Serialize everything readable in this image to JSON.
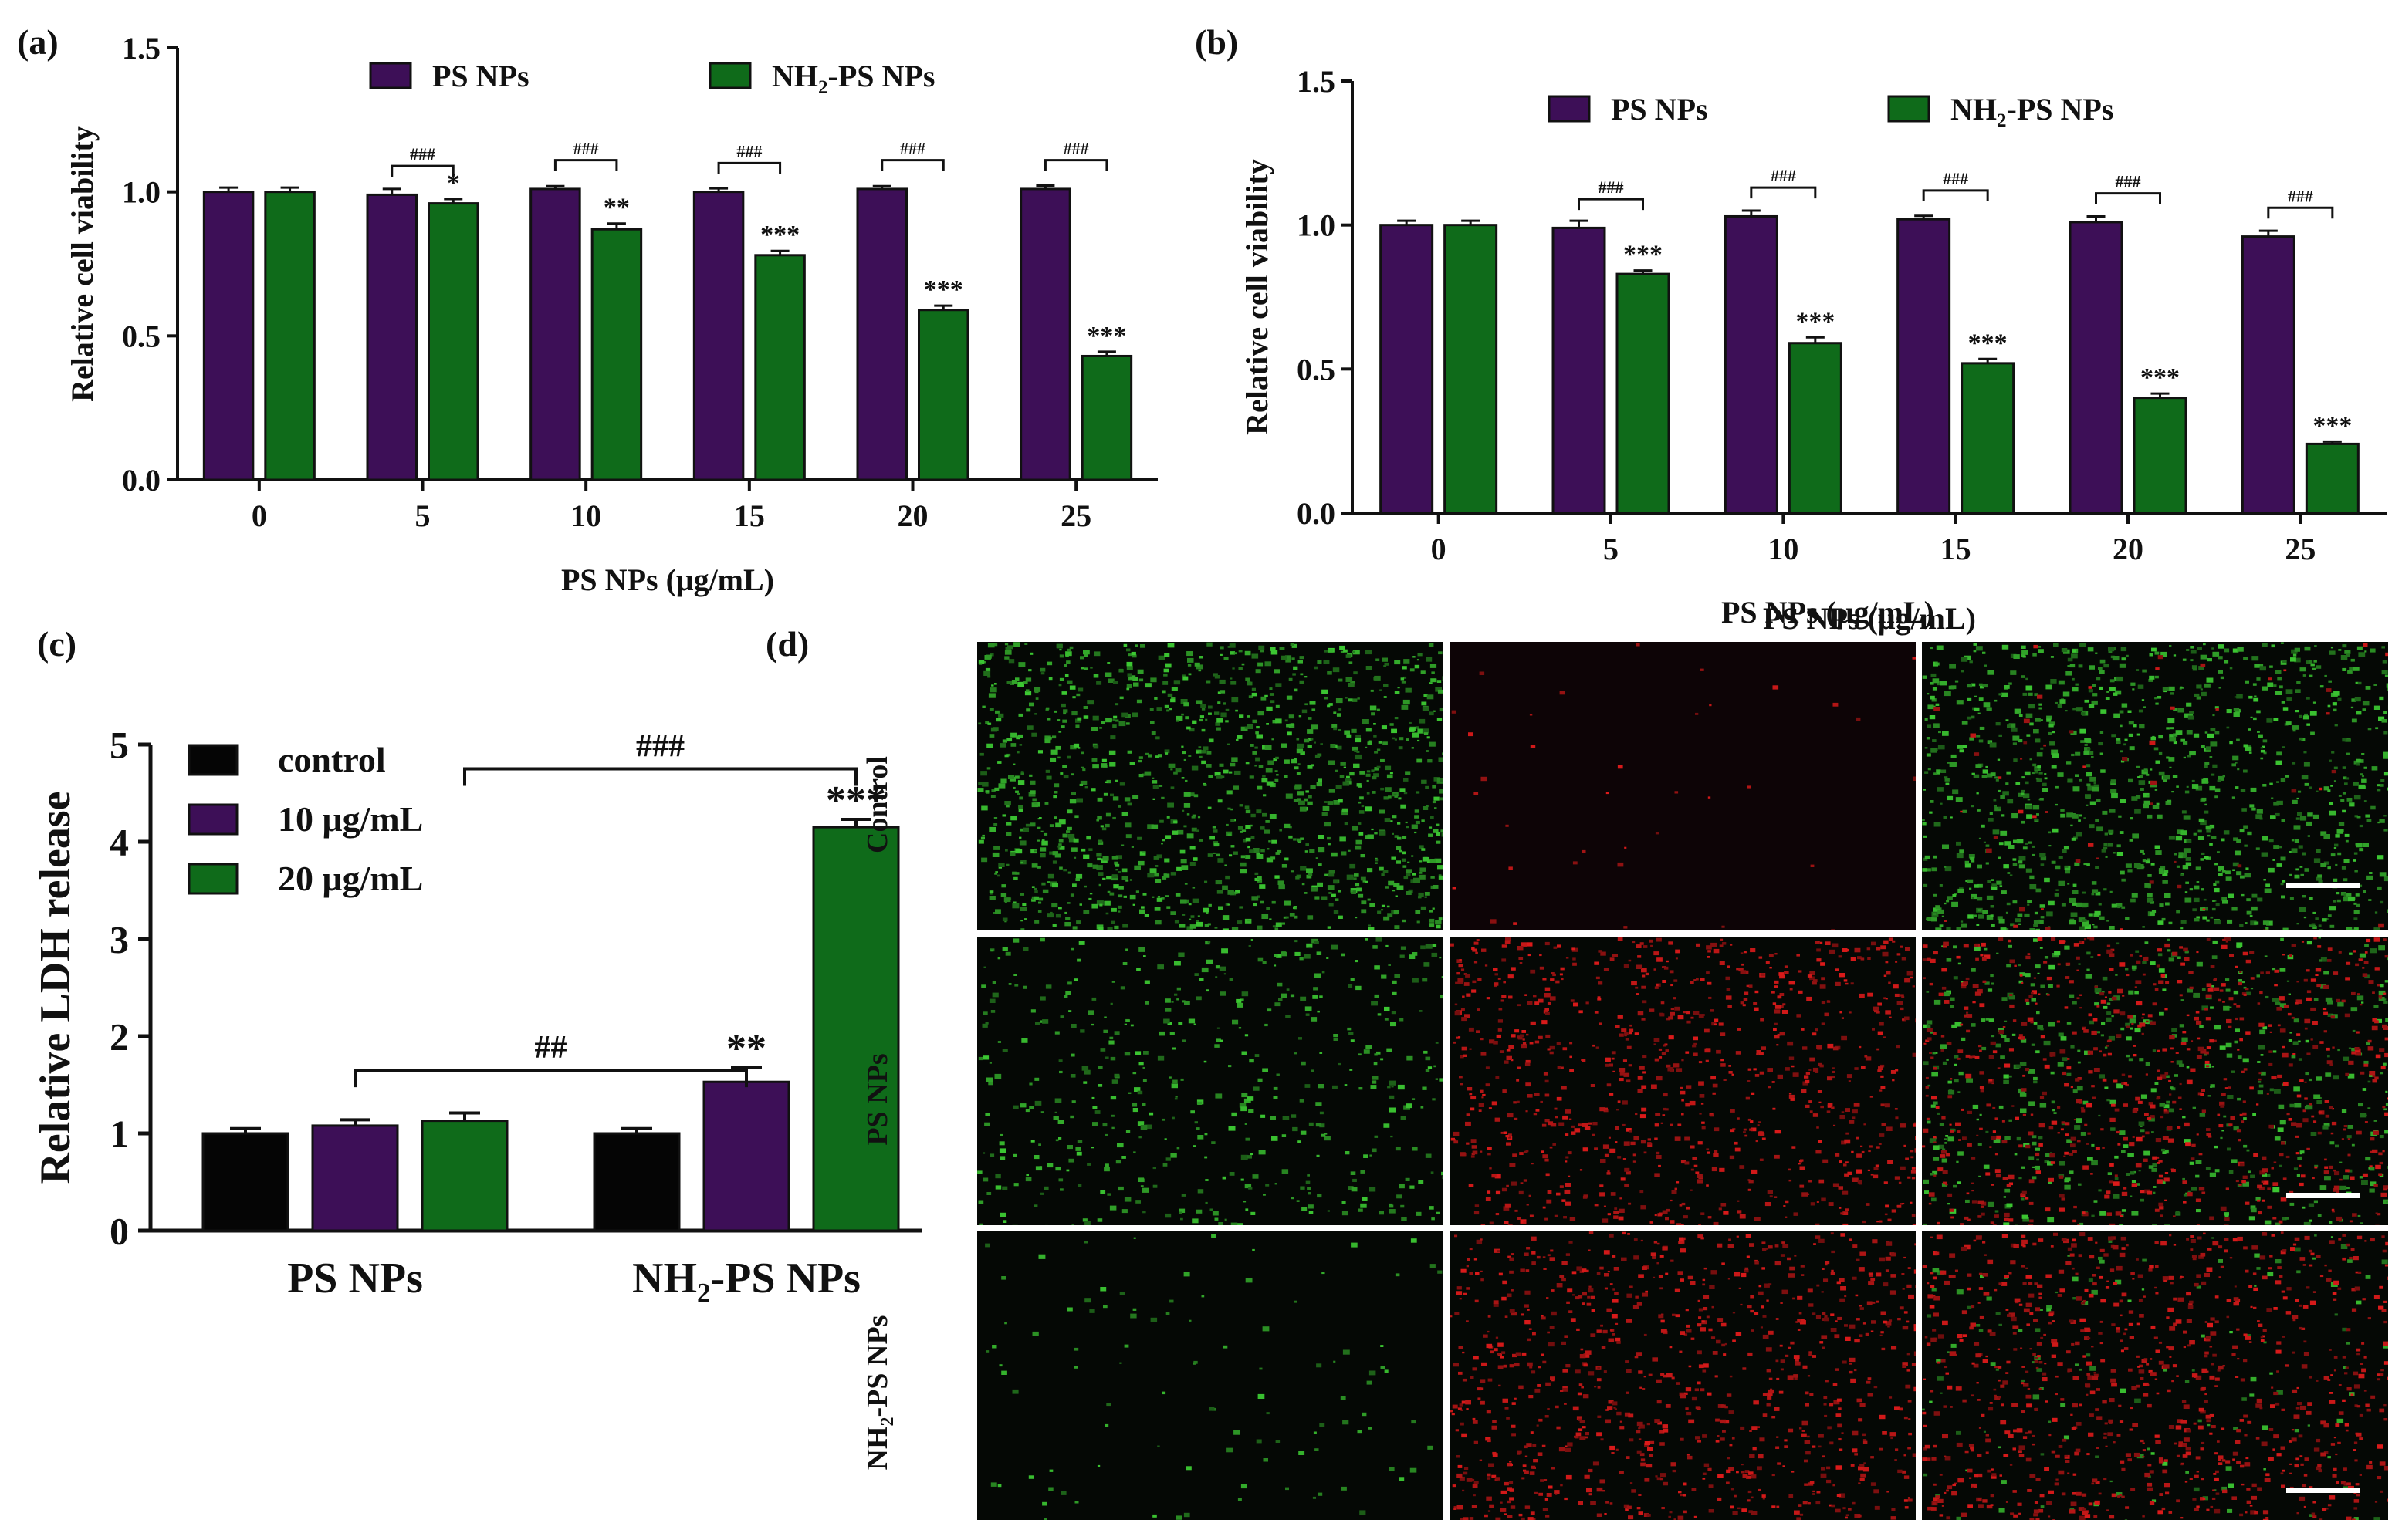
{
  "panels": {
    "a": "(a)",
    "b": "(b)",
    "c": "(c)",
    "d": "(d)"
  },
  "colors": {
    "ps": "#3d0f57",
    "nh2": "#0f6b1a",
    "control": "#050505"
  },
  "chart_data": [
    {
      "id": "a",
      "type": "bar",
      "title": "",
      "xlabel": "PS NPs (μg/mL)",
      "ylabel": "Relative cell viability",
      "categories": [
        "0",
        "5",
        "10",
        "15",
        "20",
        "25"
      ],
      "ylim": [
        0,
        1.5
      ],
      "yticks": [
        "0.0",
        "0.5",
        "1.0",
        "1.5"
      ],
      "legend": {
        "placement": "top",
        "ps_label": "PS NPs",
        "nh2_prefix": "NH",
        "nh2_sub": "2",
        "nh2_suffix": "-PS NPs"
      },
      "series": [
        {
          "name": "PS NPs",
          "values": [
            1.0,
            0.99,
            1.01,
            1.0,
            1.01,
            1.01
          ],
          "errors": [
            0.015,
            0.02,
            0.01,
            0.012,
            0.01,
            0.012
          ]
        },
        {
          "name": "NH2-PS NPs",
          "values": [
            1.0,
            0.96,
            0.87,
            0.78,
            0.59,
            0.43
          ],
          "errors": [
            0.015,
            0.015,
            0.02,
            0.015,
            0.015,
            0.015
          ]
        }
      ],
      "stars": [
        "",
        "*",
        "**",
        "***",
        "***",
        "***"
      ],
      "hashes": [
        "",
        "###",
        "###",
        "###",
        "###",
        "###"
      ]
    },
    {
      "id": "b",
      "type": "bar",
      "title": "",
      "xlabel": "PS NPs (μg/mL)",
      "ylabel": "Relative cell viability",
      "categories": [
        "0",
        "5",
        "10",
        "15",
        "20",
        "25"
      ],
      "ylim": [
        0,
        1.5
      ],
      "yticks": [
        "0.0",
        "0.5",
        "1.0",
        "1.5"
      ],
      "legend": {
        "placement": "top",
        "ps_label": "PS NPs",
        "nh2_prefix": "NH",
        "nh2_sub": "2",
        "nh2_suffix": "-PS NPs"
      },
      "series": [
        {
          "name": "PS NPs",
          "values": [
            1.0,
            0.99,
            1.03,
            1.02,
            1.01,
            0.96
          ],
          "errors": [
            0.015,
            0.025,
            0.02,
            0.012,
            0.02,
            0.02
          ]
        },
        {
          "name": "NH2-PS NPs",
          "values": [
            1.0,
            0.83,
            0.59,
            0.52,
            0.4,
            0.24
          ],
          "errors": [
            0.015,
            0.012,
            0.02,
            0.015,
            0.015,
            0.008
          ]
        }
      ],
      "stars": [
        "",
        "***",
        "***",
        "***",
        "***",
        "***"
      ],
      "hashes": [
        "",
        "###",
        "###",
        "###",
        "###",
        "###"
      ]
    },
    {
      "id": "c",
      "type": "bar",
      "title": "",
      "xlabel": "",
      "ylabel": "Relative LDH release",
      "categories": [
        "PS NPs",
        "NH2-PS NPs"
      ],
      "category_labels": {
        "ps": "PS NPs",
        "nh2_prefix": "NH",
        "nh2_sub": "2",
        "nh2_suffix": "-PS NPs"
      },
      "ylim": [
        0,
        5
      ],
      "yticks": [
        "0",
        "1",
        "2",
        "3",
        "4",
        "5"
      ],
      "legend": {
        "placement": "top-left",
        "entries": [
          "control",
          "10 μg/mL",
          "20 μg/mL"
        ]
      },
      "series": [
        {
          "name": "control",
          "values": [
            1.0,
            1.0
          ],
          "errors": [
            0.05,
            0.05
          ]
        },
        {
          "name": "10 μg/mL",
          "values": [
            1.08,
            1.53
          ],
          "errors": [
            0.06,
            0.15
          ]
        },
        {
          "name": "20 μg/mL",
          "values": [
            1.13,
            4.15
          ],
          "errors": [
            0.08,
            0.08
          ]
        }
      ],
      "stars": {
        "nh2_10": "**",
        "nh2_20": "***"
      },
      "brackets": [
        "##",
        "###"
      ]
    }
  ],
  "micrographs": {
    "column_header": "PS NPs (μg/mL)",
    "rows": [
      {
        "label": "Control",
        "label_prefix": "",
        "label_sub": "",
        "label_suffix": ""
      },
      {
        "label": "PS NPs",
        "label_prefix": "",
        "label_sub": "",
        "label_suffix": ""
      },
      {
        "label": "",
        "label_prefix": "NH",
        "label_sub": "2",
        "label_suffix": "-PS NPs"
      }
    ]
  }
}
